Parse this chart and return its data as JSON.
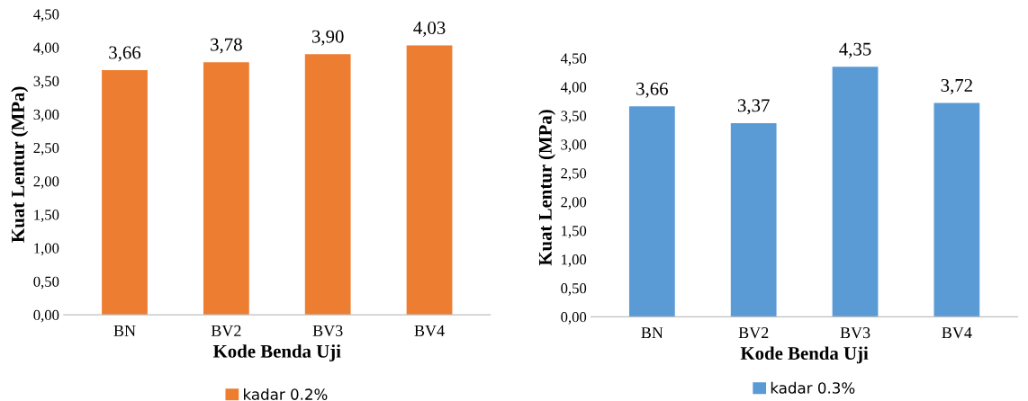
{
  "chart_data": [
    {
      "type": "bar",
      "xlabel": "Kode Benda Uji",
      "ylabel": "Kuat Lentur (MPa)",
      "categories": [
        "BN",
        "BV2",
        "BV3",
        "BV4"
      ],
      "series": [
        {
          "name": "kadar 0.2%",
          "color": "#ed7d31",
          "values": [
            3.66,
            3.78,
            3.9,
            4.03
          ],
          "value_labels": [
            "3,66",
            "3,78",
            "3,90",
            "4,03"
          ]
        }
      ],
      "ylim": [
        0,
        4.5
      ],
      "yticks": [
        {
          "value": 0,
          "label": "0,00"
        },
        {
          "value": 0.5,
          "label": "0,50"
        },
        {
          "value": 1,
          "label": "1,00"
        },
        {
          "value": 1.5,
          "label": "1,50"
        },
        {
          "value": 2,
          "label": "2,00"
        },
        {
          "value": 2.5,
          "label": "2,50"
        },
        {
          "value": 3,
          "label": "3,00"
        },
        {
          "value": 3.5,
          "label": "3,50"
        },
        {
          "value": 4,
          "label": "4,00"
        },
        {
          "value": 4.5,
          "label": "4,50"
        }
      ],
      "grid": false,
      "legend": "bottom"
    },
    {
      "type": "bar",
      "xlabel": "Kode Benda Uji",
      "ylabel": "Kuat Lentur (MPa)",
      "categories": [
        "BN",
        "BV2",
        "BV3",
        "BV4"
      ],
      "series": [
        {
          "name": "kadar 0.3%",
          "color": "#5b9bd5",
          "values": [
            3.66,
            3.37,
            4.35,
            3.72
          ],
          "value_labels": [
            "3,66",
            "3,37",
            "4,35",
            "3,72"
          ]
        }
      ],
      "ylim": [
        0,
        4.5
      ],
      "yticks": [
        {
          "value": 0,
          "label": "0,00"
        },
        {
          "value": 0.5,
          "label": "0,50"
        },
        {
          "value": 1,
          "label": "1,00"
        },
        {
          "value": 1.5,
          "label": "1,50"
        },
        {
          "value": 2,
          "label": "2,00"
        },
        {
          "value": 2.5,
          "label": "2,50"
        },
        {
          "value": 3,
          "label": "3,00"
        },
        {
          "value": 3.5,
          "label": "3,50"
        },
        {
          "value": 4,
          "label": "4,00"
        },
        {
          "value": 4.5,
          "label": "4,50"
        }
      ],
      "grid": false,
      "legend": "bottom"
    }
  ]
}
